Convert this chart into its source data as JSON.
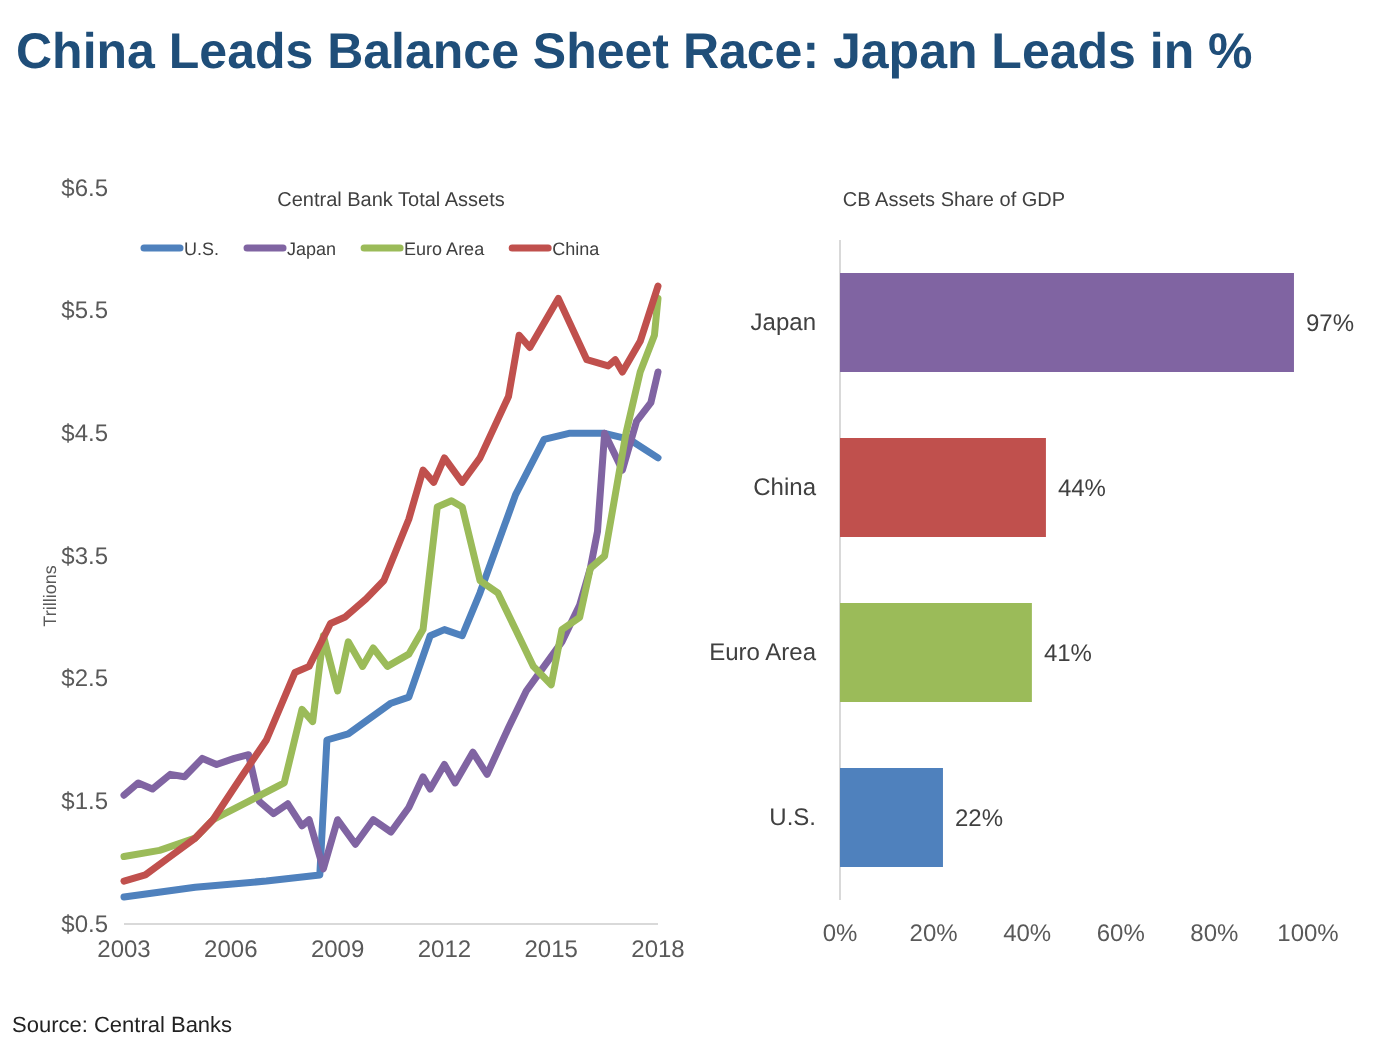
{
  "chart_data": [
    {
      "type": "line",
      "title": "China Leads Balance Sheet Race: Japan Leads in %",
      "subtitle": "Central Bank Total Assets",
      "ylabel": "Trillions",
      "xlim": [
        2003,
        2018
      ],
      "xticks": [
        2003,
        2006,
        2009,
        2012,
        2015,
        2018
      ],
      "ylim": [
        0.5,
        6.5
      ],
      "yticks": [
        {
          "value": 0.5,
          "label": "$0.5"
        },
        {
          "value": 1.5,
          "label": "$1.5"
        },
        {
          "value": 2.5,
          "label": "$2.5"
        },
        {
          "value": 3.5,
          "label": "$3.5"
        },
        {
          "value": 4.5,
          "label": "$4.5"
        },
        {
          "value": 5.5,
          "label": "$5.5"
        },
        {
          "value": 6.5,
          "label": "$6.5"
        }
      ],
      "grid": false,
      "legend": "top",
      "marker": "none",
      "line_style": "solid",
      "annotations": [
        "Source: Central Banks"
      ],
      "series": [
        {
          "name": "U.S.",
          "color": "#4f81bd",
          "x": [
            2003,
            2005,
            2007,
            2008.5,
            2008.7,
            2009.3,
            2010.5,
            2011,
            2011.6,
            2012,
            2012.5,
            2013,
            2014,
            2014.8,
            2015.5,
            2016.5,
            2017.2,
            2018
          ],
          "values": [
            0.72,
            0.8,
            0.85,
            0.9,
            2.0,
            2.05,
            2.3,
            2.35,
            2.85,
            2.9,
            2.85,
            3.2,
            4.0,
            4.45,
            4.5,
            4.5,
            4.45,
            4.3
          ]
        },
        {
          "name": "Japan",
          "color": "#8064a2",
          "x": [
            2003,
            2003.4,
            2003.8,
            2004.3,
            2004.7,
            2005.2,
            2005.6,
            2006.1,
            2006.5,
            2006.8,
            2007.2,
            2007.6,
            2008,
            2008.2,
            2008.6,
            2009,
            2009.5,
            2010,
            2010.5,
            2011,
            2011.4,
            2011.6,
            2012,
            2012.3,
            2012.8,
            2013.2,
            2013.8,
            2014.3,
            2014.8,
            2015.3,
            2015.8,
            2016.1,
            2016.3,
            2016.5,
            2017,
            2017.4,
            2017.8,
            2018
          ],
          "values": [
            1.55,
            1.65,
            1.6,
            1.72,
            1.7,
            1.85,
            1.8,
            1.85,
            1.88,
            1.5,
            1.4,
            1.48,
            1.3,
            1.35,
            0.95,
            1.35,
            1.15,
            1.35,
            1.25,
            1.45,
            1.7,
            1.6,
            1.8,
            1.65,
            1.9,
            1.72,
            2.1,
            2.4,
            2.6,
            2.8,
            3.1,
            3.4,
            3.7,
            4.5,
            4.2,
            4.6,
            4.75,
            5.0
          ]
        },
        {
          "name": "Euro Area",
          "color": "#9bbb59",
          "x": [
            2003,
            2004,
            2005,
            2005.5,
            2006.5,
            2007.5,
            2008,
            2008.3,
            2008.6,
            2009,
            2009.3,
            2009.7,
            2010,
            2010.4,
            2011,
            2011.4,
            2011.8,
            2012.2,
            2012.5,
            2013,
            2013.5,
            2014,
            2014.5,
            2015,
            2015.3,
            2015.8,
            2016.1,
            2016.5,
            2017.1,
            2017.5,
            2017.9,
            2018
          ],
          "values": [
            1.05,
            1.1,
            1.2,
            1.35,
            1.5,
            1.65,
            2.25,
            2.15,
            2.85,
            2.4,
            2.8,
            2.6,
            2.75,
            2.6,
            2.7,
            2.9,
            3.9,
            3.95,
            3.9,
            3.3,
            3.2,
            2.9,
            2.6,
            2.45,
            2.9,
            3.0,
            3.4,
            3.5,
            4.5,
            5.0,
            5.3,
            5.6
          ]
        },
        {
          "name": "China",
          "color": "#c0504d",
          "x": [
            2003,
            2003.6,
            2004.3,
            2005,
            2005.5,
            2006.3,
            2007,
            2007.8,
            2008.2,
            2008.8,
            2009.2,
            2009.8,
            2010.3,
            2011,
            2011.4,
            2011.7,
            2012,
            2012.5,
            2013,
            2013.8,
            2014.1,
            2014.4,
            2015.2,
            2016,
            2016.6,
            2016.8,
            2017,
            2017.5,
            2018
          ],
          "values": [
            0.85,
            0.9,
            1.05,
            1.2,
            1.35,
            1.7,
            2.0,
            2.55,
            2.6,
            2.95,
            3.0,
            3.15,
            3.3,
            3.8,
            4.2,
            4.1,
            4.3,
            4.1,
            4.3,
            4.8,
            5.3,
            5.2,
            5.6,
            5.1,
            5.05,
            5.1,
            5.0,
            5.25,
            5.7
          ]
        }
      ]
    },
    {
      "type": "bar",
      "orientation": "horizontal",
      "title": "CB Assets Share of GDP",
      "categories": [
        "Japan",
        "China",
        "Euro Area",
        "U.S."
      ],
      "values": [
        97,
        44,
        41,
        22
      ],
      "colors": [
        "#8064a2",
        "#c0504d",
        "#9bbb59",
        "#4f81bd"
      ],
      "value_labels": [
        "97%",
        "44%",
        "41%",
        "22%"
      ],
      "xlim": [
        0,
        100
      ],
      "xticks": [
        {
          "value": 0,
          "label": "0%"
        },
        {
          "value": 20,
          "label": "20%"
        },
        {
          "value": 40,
          "label": "40%"
        },
        {
          "value": 60,
          "label": "60%"
        },
        {
          "value": 80,
          "label": "80%"
        },
        {
          "value": 100,
          "label": "100%"
        }
      ],
      "grid": false
    }
  ]
}
